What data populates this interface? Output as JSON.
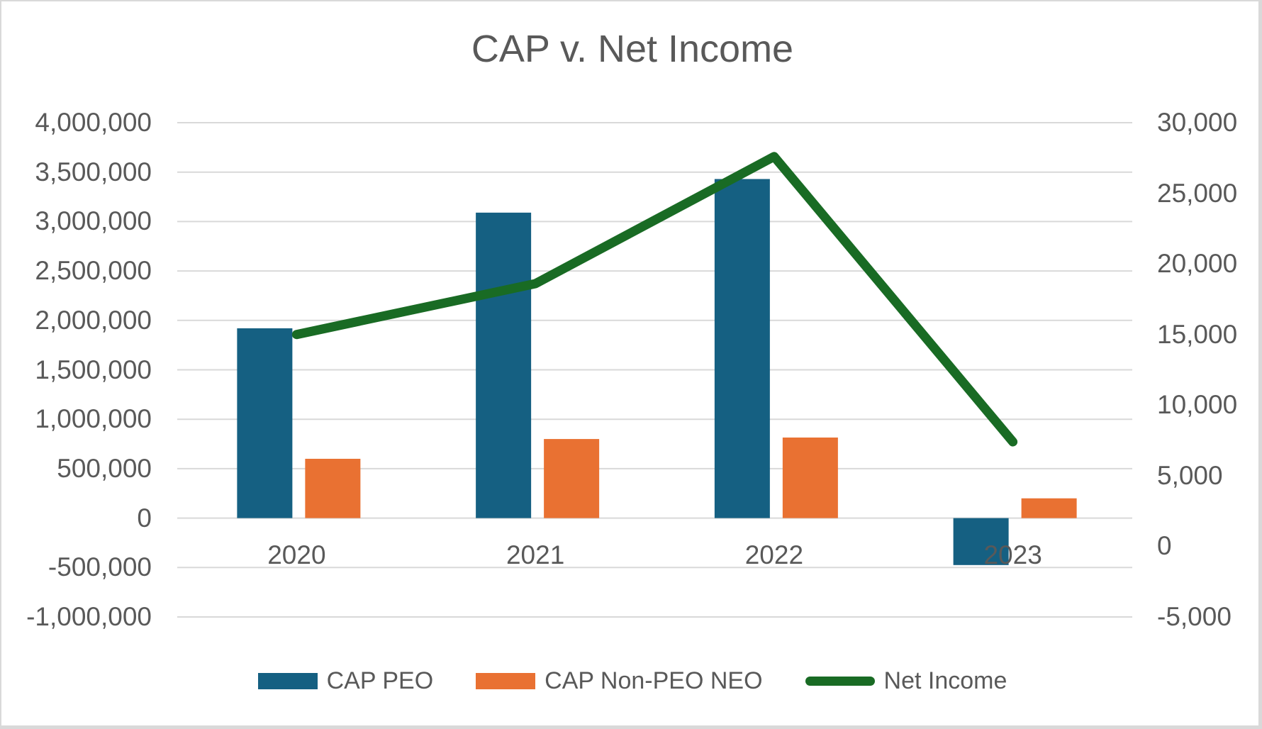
{
  "chart_data": {
    "type": "combo-bar-line",
    "title": "CAP v. Net Income",
    "categories": [
      "2020",
      "2021",
      "2022",
      "2023"
    ],
    "bar_series": [
      {
        "name": "CAP PEO",
        "color": "#156082",
        "axis": "left",
        "values": [
          1920000,
          3090000,
          3430000,
          -475000
        ]
      },
      {
        "name": "CAP Non-PEO NEO",
        "color": "#E97132",
        "axis": "left",
        "values": [
          600000,
          800000,
          815000,
          200000
        ]
      }
    ],
    "line_series": [
      {
        "name": "Net Income",
        "color": "#196B24",
        "axis": "right",
        "values": [
          15000,
          18600,
          27600,
          7400
        ]
      }
    ],
    "left_axis": {
      "min": -1000000,
      "max": 4000000,
      "step": 500000,
      "tick_labels": [
        "4,000,000",
        "3,500,000",
        "3,000,000",
        "2,500,000",
        "2,000,000",
        "1,500,000",
        "1,000,000",
        "500,000",
        "0",
        "-500,000",
        "-1,000,000"
      ]
    },
    "right_axis": {
      "min": -5000,
      "max": 30000,
      "step": 5000,
      "tick_labels": [
        "30,000",
        "25,000",
        "20,000",
        "15,000",
        "10,000",
        "5,000",
        "0",
        "-5,000"
      ]
    },
    "grid": true,
    "legend_position": "bottom",
    "colors": {
      "grid": "#D9D9D9",
      "text": "#595959",
      "background": "#FFFFFF",
      "frame_border": "#D9D9D9"
    }
  }
}
